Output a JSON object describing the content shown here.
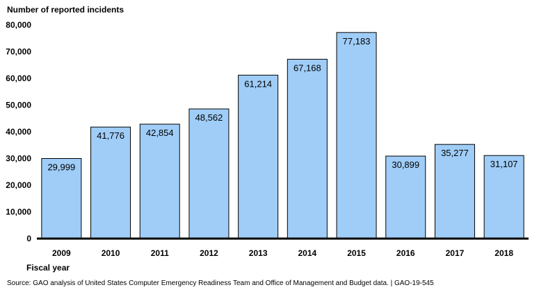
{
  "chart_data": {
    "type": "bar",
    "ylabel": "Number of reported incidents",
    "xlabel": "Fiscal year",
    "categories": [
      "2009",
      "2010",
      "2011",
      "2012",
      "2013",
      "2014",
      "2015",
      "2016",
      "2017",
      "2018"
    ],
    "values": [
      29999,
      41776,
      42854,
      48562,
      61214,
      67168,
      77183,
      30899,
      35277,
      31107
    ],
    "value_labels": [
      "29,999",
      "41,776",
      "42,854",
      "48,562",
      "61,214",
      "67,168",
      "77,183",
      "30,899",
      "35,277",
      "31,107"
    ],
    "ylim": [
      0,
      80000
    ],
    "yticks": [
      0,
      10000,
      20000,
      30000,
      40000,
      50000,
      60000,
      70000,
      80000
    ],
    "ytick_labels": [
      "0",
      "10,000",
      "20,000",
      "30,000",
      "40,000",
      "50,000",
      "60,000",
      "70,000",
      "80,000"
    ],
    "grid": false,
    "bar_color": "#9fcdf7",
    "bar_edge_color": "#000000"
  },
  "source": "Source: GAO analysis of United States Computer Emergency Readiness Team and Office of Management and Budget data.  |  GAO-19-545"
}
